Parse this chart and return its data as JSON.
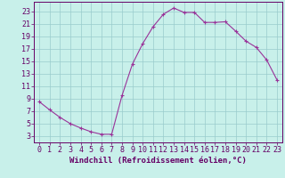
{
  "title": "",
  "xlabel": "Windchill (Refroidissement éolien,°C)",
  "ylabel": "",
  "background_color": "#c8f0ea",
  "line_color": "#993399",
  "marker_color": "#993399",
  "xlim": [
    -0.5,
    23.5
  ],
  "ylim": [
    2.0,
    24.5
  ],
  "yticks": [
    3,
    5,
    7,
    9,
    11,
    13,
    15,
    17,
    19,
    21,
    23
  ],
  "xticks": [
    0,
    1,
    2,
    3,
    4,
    5,
    6,
    7,
    8,
    9,
    10,
    11,
    12,
    13,
    14,
    15,
    16,
    17,
    18,
    19,
    20,
    21,
    22,
    23
  ],
  "hours": [
    0,
    1,
    2,
    3,
    4,
    5,
    6,
    7,
    8,
    9,
    10,
    11,
    12,
    13,
    14,
    15,
    16,
    17,
    18,
    19,
    20,
    21,
    22,
    23
  ],
  "values": [
    8.5,
    7.2,
    6.0,
    5.0,
    4.3,
    3.7,
    3.3,
    3.3,
    9.5,
    14.5,
    17.8,
    20.5,
    22.5,
    23.5,
    22.8,
    22.8,
    21.2,
    21.2,
    21.3,
    19.8,
    18.2,
    17.2,
    15.2,
    12.0
  ],
  "grid_color": "#99cccc",
  "xlabel_fontsize": 6.5,
  "tick_fontsize": 6.0,
  "xlabel_color": "#660066",
  "tick_color": "#660066",
  "spine_color": "#660066"
}
